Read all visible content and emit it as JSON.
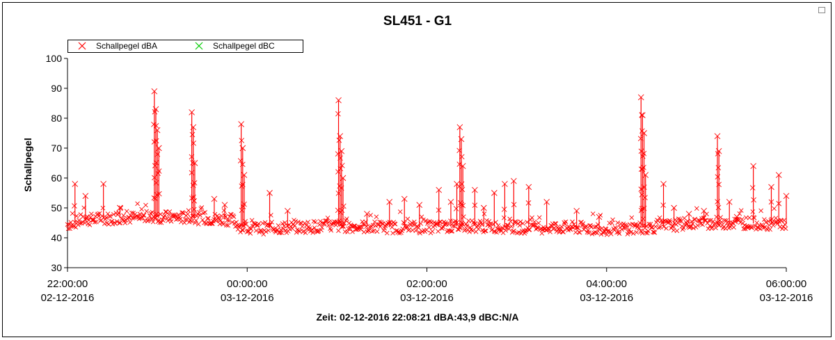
{
  "window": {
    "title": "SL451 - G1"
  },
  "footer": {
    "status": "Zeit: 02-12-2016 22:08:21 dBA:43,9 dBC:N/A"
  },
  "chart_data": {
    "type": "scatter",
    "title": "SL451 - G1",
    "xlabel": "",
    "ylabel": "Schallpegel",
    "ylim": [
      30,
      100
    ],
    "yticks": [
      30,
      40,
      50,
      60,
      70,
      80,
      90,
      100
    ],
    "xlim": [
      "2016-12-02 22:00:00",
      "2016-12-03 06:00:00"
    ],
    "xticks": [
      {
        "time": "22:00:00",
        "date": "02-12-2016"
      },
      {
        "time": "00:00:00",
        "date": "03-12-2016"
      },
      {
        "time": "02:00:00",
        "date": "03-12-2016"
      },
      {
        "time": "04:00:00",
        "date": "03-12-2016"
      },
      {
        "time": "06:00:00",
        "date": "03-12-2016"
      }
    ],
    "grid": false,
    "legend_position": "top-left",
    "colors": {
      "dBA": "#ff0000",
      "dBC": "#00cc00"
    },
    "series": [
      {
        "name": "Schallpegel dBA",
        "color": "#ff0000",
        "baseline": [
          [
            "22:00",
            44.5
          ],
          [
            "22:10",
            46
          ],
          [
            "22:30",
            46.5
          ],
          [
            "23:00",
            47
          ],
          [
            "23:30",
            46.5
          ],
          [
            "23:50",
            46
          ],
          [
            "23:55",
            44
          ],
          [
            "00:00",
            43
          ],
          [
            "00:30",
            43.5
          ],
          [
            "01:00",
            44
          ],
          [
            "01:30",
            43.5
          ],
          [
            "02:00",
            43.5
          ],
          [
            "02:30",
            44
          ],
          [
            "03:00",
            43.5
          ],
          [
            "03:30",
            43.5
          ],
          [
            "04:00",
            43
          ],
          [
            "04:30",
            43.5
          ],
          [
            "05:00",
            45
          ],
          [
            "05:30",
            45
          ],
          [
            "06:00",
            44.5
          ]
        ],
        "peaks": [
          [
            "22:05",
            58
          ],
          [
            "22:12",
            54
          ],
          [
            "22:24",
            58
          ],
          [
            "22:35",
            50
          ],
          [
            "22:58",
            89
          ],
          [
            "22:59",
            83
          ],
          [
            "23:00",
            76
          ],
          [
            "23:01",
            70
          ],
          [
            "23:23",
            82
          ],
          [
            "23:24",
            77
          ],
          [
            "23:25",
            65
          ],
          [
            "23:38",
            53
          ],
          [
            "23:45",
            51
          ],
          [
            "23:56",
            78
          ],
          [
            "23:57",
            70
          ],
          [
            "23:58",
            61
          ],
          [
            "00:15",
            55
          ],
          [
            "00:27",
            49
          ],
          [
            "01:01",
            86
          ],
          [
            "01:02",
            74
          ],
          [
            "01:03",
            69
          ],
          [
            "01:04",
            60
          ],
          [
            "01:20",
            48
          ],
          [
            "01:35",
            52
          ],
          [
            "01:45",
            53
          ],
          [
            "01:55",
            51
          ],
          [
            "02:08",
            56
          ],
          [
            "02:16",
            52
          ],
          [
            "02:20",
            58
          ],
          [
            "02:22",
            77
          ],
          [
            "02:23",
            73
          ],
          [
            "02:24",
            64
          ],
          [
            "02:32",
            56
          ],
          [
            "02:38",
            50
          ],
          [
            "02:45",
            55
          ],
          [
            "02:52",
            58
          ],
          [
            "02:58",
            59
          ],
          [
            "03:08",
            57
          ],
          [
            "03:20",
            52
          ],
          [
            "03:40",
            49
          ],
          [
            "03:55",
            47
          ],
          [
            "04:23",
            87
          ],
          [
            "04:24",
            81
          ],
          [
            "04:25",
            75
          ],
          [
            "04:26",
            61
          ],
          [
            "04:38",
            58
          ],
          [
            "04:45",
            50
          ],
          [
            "04:55",
            48
          ],
          [
            "05:05",
            49
          ],
          [
            "05:14",
            74
          ],
          [
            "05:15",
            69
          ],
          [
            "05:22",
            52
          ],
          [
            "05:27",
            47
          ],
          [
            "05:38",
            64
          ],
          [
            "05:50",
            57
          ],
          [
            "05:55",
            61
          ],
          [
            "06:00",
            54
          ]
        ]
      },
      {
        "name": "Schallpegel dBC",
        "color": "#00cc00",
        "baseline": [],
        "peaks": []
      }
    ]
  }
}
